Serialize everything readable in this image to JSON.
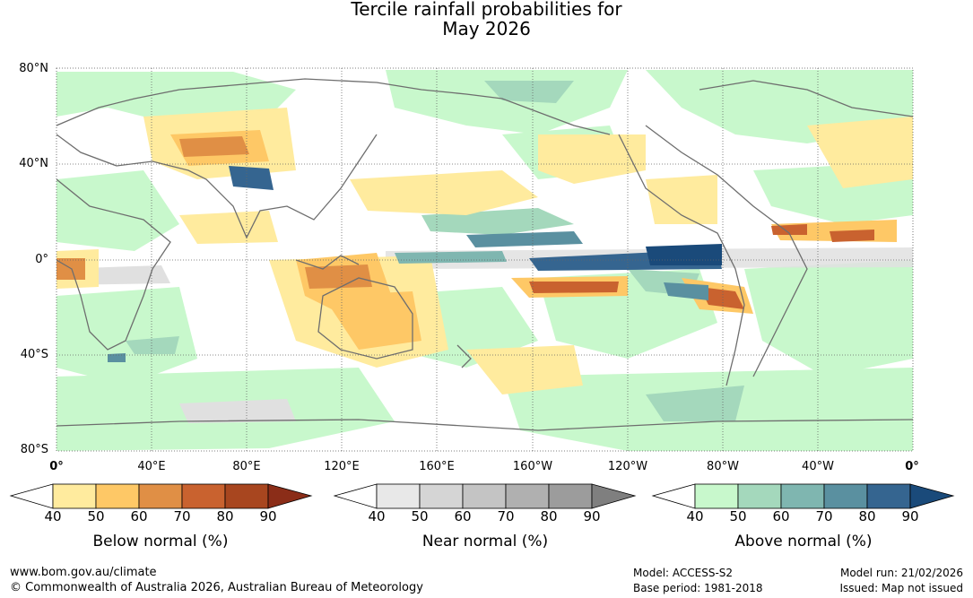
{
  "title": {
    "line1": "Tercile rainfall probabilities for",
    "line2": "May 2026"
  },
  "map": {
    "lat_labels": [
      "80°N",
      "40°N",
      "0°",
      "40°S",
      "80°S"
    ],
    "lon_labels": [
      "0°",
      "40°E",
      "80°E",
      "120°E",
      "160°E",
      "160°W",
      "120°W",
      "80°W",
      "40°W",
      "0°"
    ],
    "lon_range": [
      0,
      360
    ],
    "lat_range": [
      -80,
      80
    ],
    "grid": true
  },
  "colorbars": [
    {
      "title": "Below normal (%)",
      "ticks": [
        "40",
        "50",
        "60",
        "70",
        "80",
        "90"
      ],
      "colors": [
        "#ffffff",
        "#ffeb9e",
        "#fec866",
        "#e08f45",
        "#c9622f",
        "#a8461f",
        "#8b2d18"
      ]
    },
    {
      "title": "Near normal (%)",
      "ticks": [
        "40",
        "50",
        "60",
        "70",
        "80",
        "90"
      ],
      "colors": [
        "#ffffff",
        "#e8e8e8",
        "#d5d5d5",
        "#c4c4c4",
        "#b0b0b0",
        "#9c9c9c",
        "#7f7f7f"
      ]
    },
    {
      "title": "Above normal (%)",
      "ticks": [
        "40",
        "50",
        "60",
        "70",
        "80",
        "90"
      ],
      "colors": [
        "#ffffff",
        "#c8f8cc",
        "#a4d8bc",
        "#7fb6b0",
        "#5a90a0",
        "#356590",
        "#1a4a7a"
      ]
    }
  ],
  "footer": {
    "url": "www.bom.gov.au/climate",
    "copyright": "© Commonwealth of Australia 2026, Australian Bureau of Meteorology",
    "model": "Model: ACCESS-S2",
    "base_period": "Base period: 1981-2018",
    "model_run": "Model run: 21/02/2026",
    "issued": "Issued: Map not issued"
  }
}
